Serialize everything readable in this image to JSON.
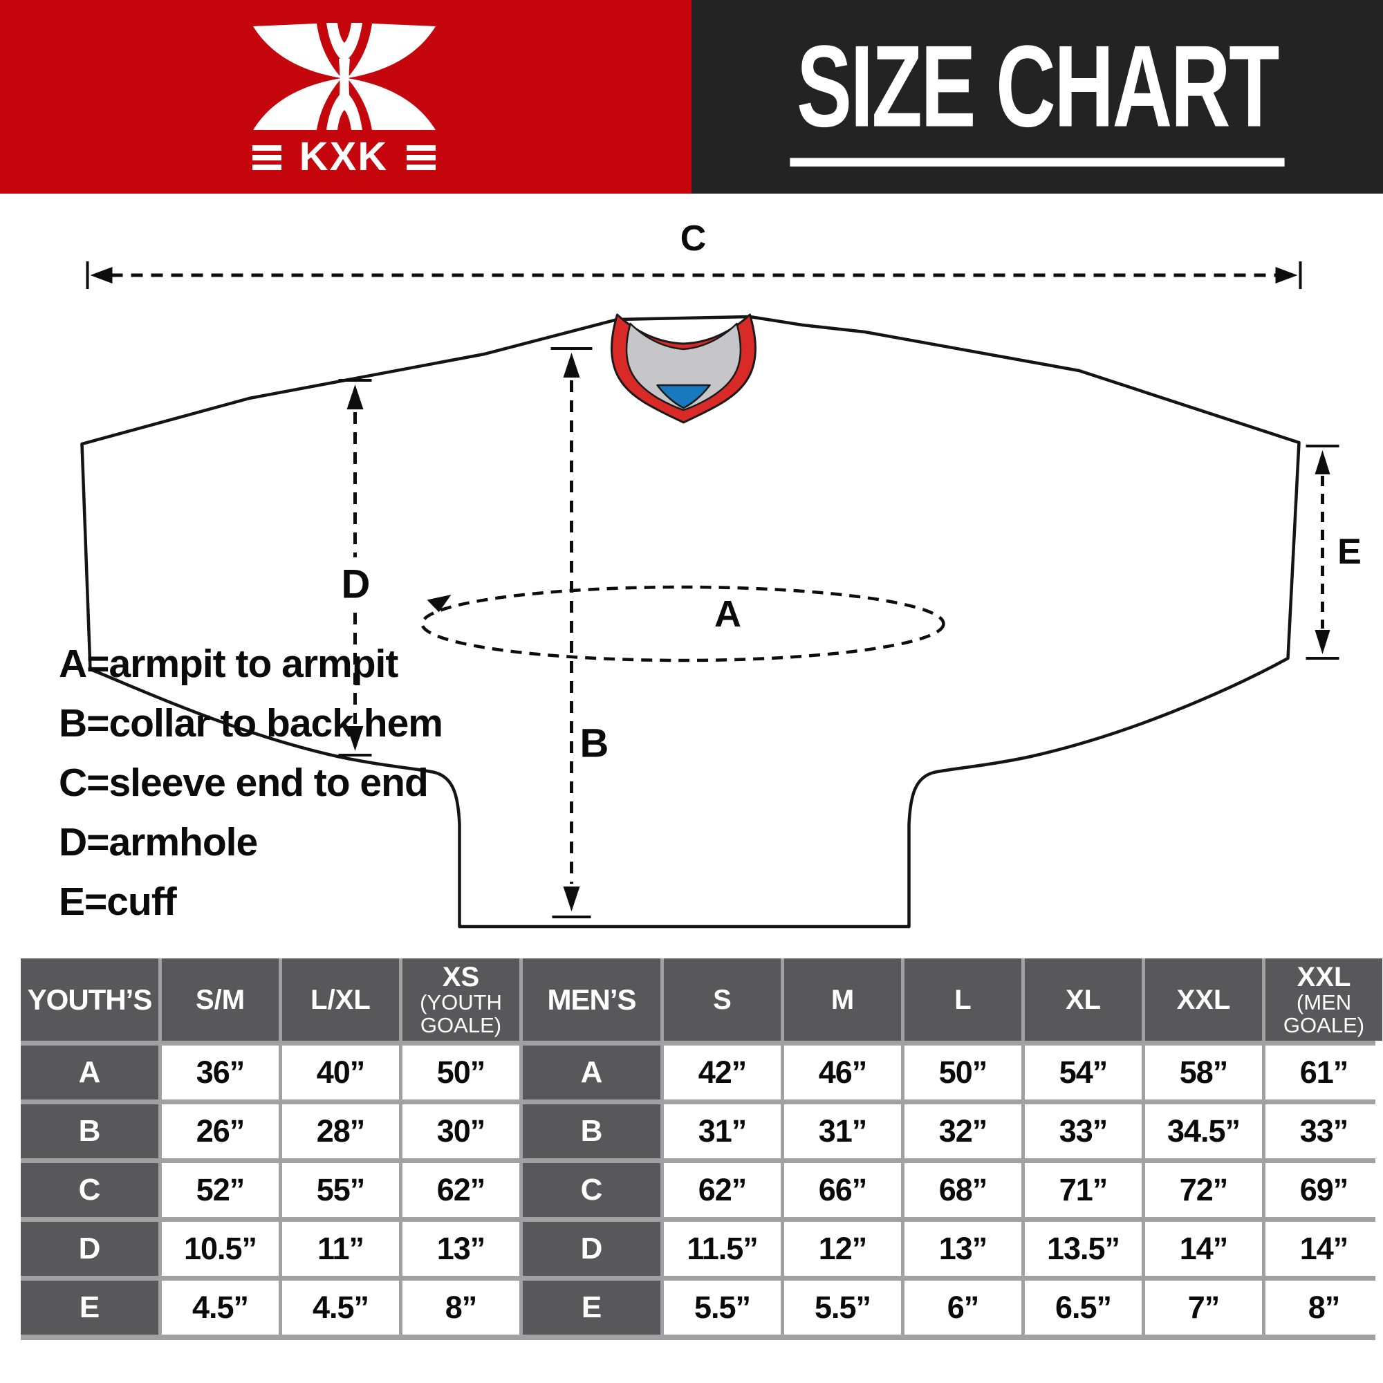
{
  "header": {
    "brand": "KXK",
    "title": "SIZE CHART",
    "brand_bg_color": "#c5060d",
    "title_bg_color": "#232323"
  },
  "diagram": {
    "labels": {
      "a": "A",
      "b": "B",
      "c": "C",
      "d": "D",
      "e": "E"
    },
    "legend": [
      "A=armpit to armpit",
      "B=collar to back hem",
      "C=sleeve end to end",
      "D=armhole",
      "E=cuff"
    ],
    "colors": {
      "outline": "#141414",
      "collar_red": "#d92a28",
      "collar_gray": "#c6c6c8",
      "collar_blue": "#1879be"
    }
  },
  "table": {
    "youth_header": "YOUTH’S",
    "men_header": "MEN’S",
    "youth_columns": [
      {
        "label": "S/M",
        "sub": ""
      },
      {
        "label": "L/XL",
        "sub": ""
      },
      {
        "label": "XS",
        "sub": "(YOUTH GOALE)"
      }
    ],
    "men_columns": [
      {
        "label": "S",
        "sub": ""
      },
      {
        "label": "M",
        "sub": ""
      },
      {
        "label": "L",
        "sub": ""
      },
      {
        "label": "XL",
        "sub": ""
      },
      {
        "label": "XXL",
        "sub": ""
      },
      {
        "label": "XXL",
        "sub": "(MEN GOALE)"
      }
    ],
    "rows": [
      {
        "label": "A",
        "youth": [
          "36”",
          "40”",
          "50”"
        ],
        "men": [
          "42”",
          "46”",
          "50”",
          "54”",
          "58”",
          "61”"
        ]
      },
      {
        "label": "B",
        "youth": [
          "26”",
          "28”",
          "30”"
        ],
        "men": [
          "31”",
          "31”",
          "32”",
          "33”",
          "34.5”",
          "33”"
        ]
      },
      {
        "label": "C",
        "youth": [
          "52”",
          "55”",
          "62”"
        ],
        "men": [
          "62”",
          "66”",
          "68”",
          "71”",
          "72”",
          "69”"
        ]
      },
      {
        "label": "D",
        "youth": [
          "10.5”",
          "11”",
          "13”"
        ],
        "men": [
          "11.5”",
          "12”",
          "13”",
          "13.5”",
          "14”",
          "14”"
        ]
      },
      {
        "label": "E",
        "youth": [
          "4.5”",
          "4.5”",
          "8”"
        ],
        "men": [
          "5.5”",
          "5.5”",
          "6”",
          "6.5”",
          "7”",
          "8”"
        ]
      }
    ],
    "header_cell_color": "#58585a",
    "grid_line_color": "#a1a1a1"
  }
}
